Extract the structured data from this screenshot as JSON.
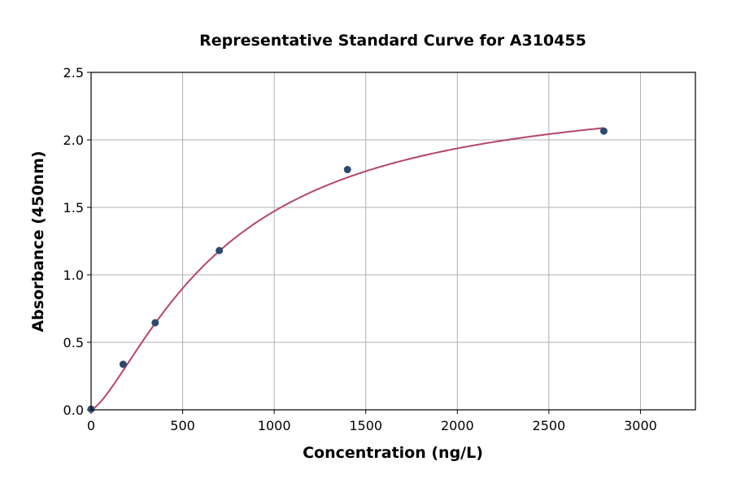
{
  "chart_data": {
    "type": "scatter",
    "title": "Representative Standard Curve for A310455",
    "xlabel": "Concentration (ng/L)",
    "ylabel": "Absorbance (450nm)",
    "xlim": [
      0,
      3300
    ],
    "ylim": [
      0,
      2.5
    ],
    "xticks": [
      0,
      500,
      1000,
      1500,
      2000,
      2500,
      3000
    ],
    "yticks": [
      "0.0",
      "0.5",
      "1.0",
      "1.5",
      "2.0",
      "2.5"
    ],
    "grid": true,
    "points": [
      {
        "x": 0,
        "y": 0.005
      },
      {
        "x": 175,
        "y": 0.337
      },
      {
        "x": 350,
        "y": 0.645
      },
      {
        "x": 700,
        "y": 1.18
      },
      {
        "x": 1400,
        "y": 1.78
      },
      {
        "x": 2800,
        "y": 2.065
      }
    ],
    "fit_curve": {
      "model": "4PL",
      "a": 0,
      "b": 1.4,
      "c": 720,
      "d": 2.4,
      "x_range": [
        0,
        2800
      ]
    },
    "colors": {
      "points": "#2e4a6b",
      "curve": "#b5446e",
      "grid": "#b0b0b0"
    }
  }
}
